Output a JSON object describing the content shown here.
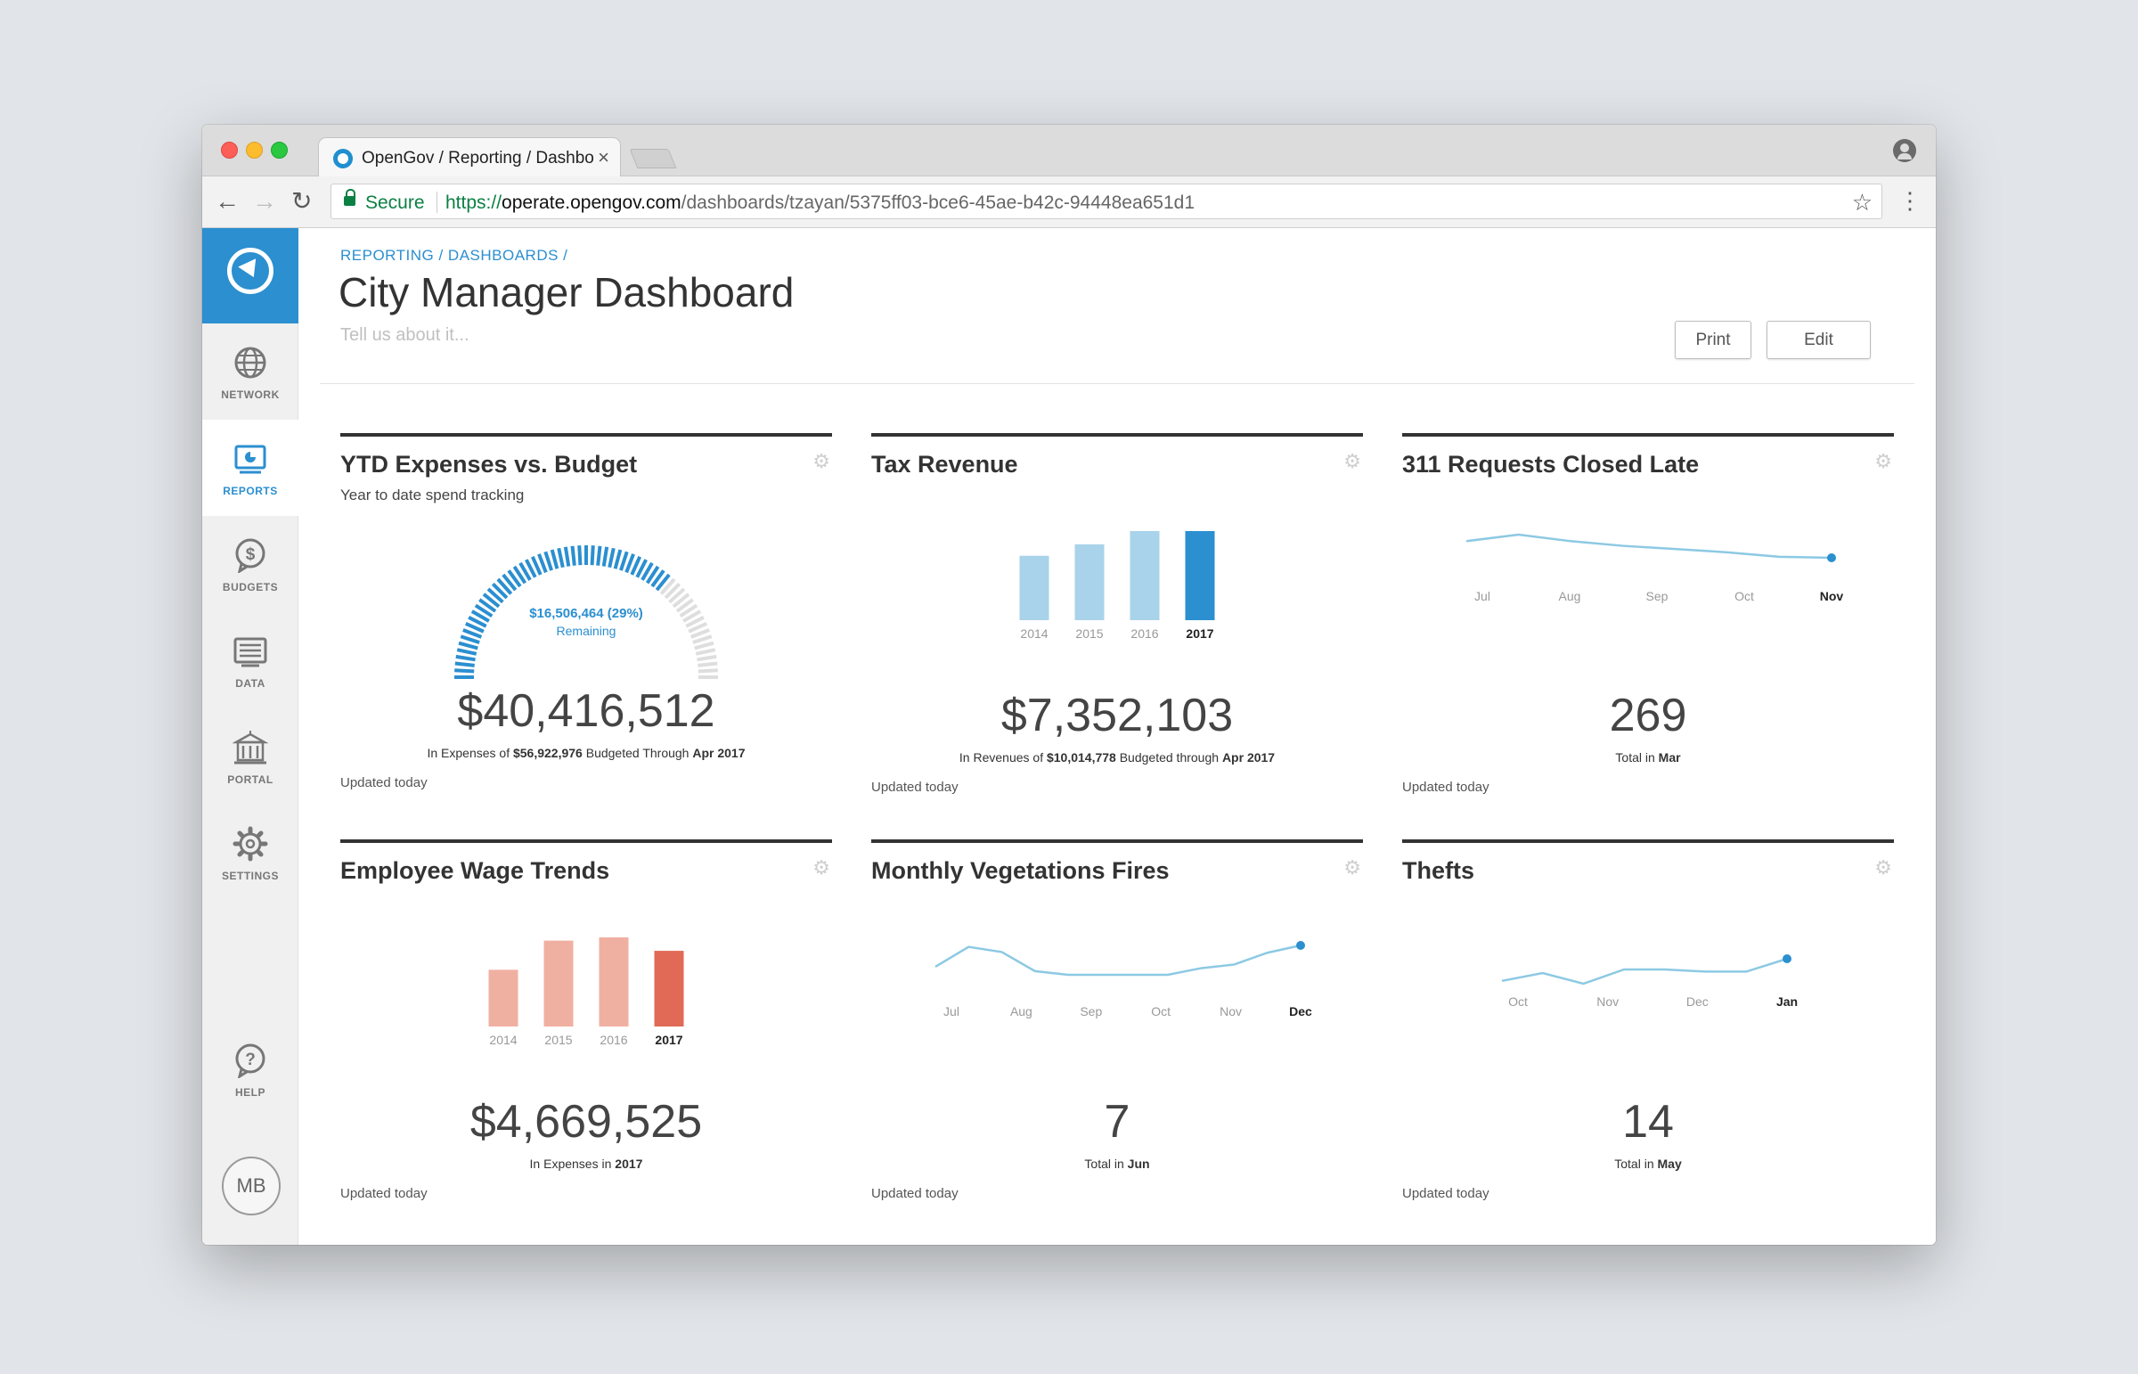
{
  "browser": {
    "tab_title": "OpenGov / Reporting / Dashbo",
    "secure_label": "Secure",
    "url_scheme": "https://",
    "url_host": "operate.opengov.com",
    "url_path": "/dashboards/tzayan/5375ff03-bce6-45ae-b42c-94448ea651d1"
  },
  "sidebar": {
    "items": [
      {
        "label": "NETWORK",
        "icon": "globe-icon"
      },
      {
        "label": "REPORTS",
        "icon": "reports-icon",
        "active": true
      },
      {
        "label": "BUDGETS",
        "icon": "dollar-icon"
      },
      {
        "label": "DATA",
        "icon": "data-icon"
      },
      {
        "label": "PORTAL",
        "icon": "building-icon"
      },
      {
        "label": "SETTINGS",
        "icon": "gear-icon"
      }
    ],
    "help_label": "HELP",
    "avatar_initials": "MB"
  },
  "header": {
    "breadcrumb": "REPORTING / DASHBOARDS /",
    "title": "City Manager Dashboard",
    "description_placeholder": "Tell us about it...",
    "print_label": "Print",
    "edit_label": "Edit"
  },
  "colors": {
    "accent": "#2b8fd0",
    "bar_light_blue": "#a9d3ea",
    "bar_blue": "#2b8fd0",
    "bar_light_red": "#f0b0a1",
    "bar_red": "#e06a55",
    "line_blue": "#8cc9e3"
  },
  "cards": [
    {
      "title": "YTD Expenses vs. Budget",
      "subtitle": "Year to date spend tracking",
      "gauge_label": "$16,506,464 (29%)",
      "gauge_sublabel": "Remaining",
      "value": "$40,416,512",
      "caption_pre": "In Expenses of ",
      "caption_bold": "$56,922,976",
      "caption_mid": " Budgeted Through ",
      "caption_bold2": "Apr 2017",
      "updated": "Updated today"
    },
    {
      "title": "Tax Revenue",
      "value": "$7,352,103",
      "caption_pre": "In Revenues of ",
      "caption_bold": "$10,014,778",
      "caption_mid": " Budgeted through ",
      "caption_bold2": "Apr 2017",
      "updated": "Updated today"
    },
    {
      "title": "311 Requests Closed Late",
      "value": "269",
      "caption_pre": "Total in ",
      "caption_bold": "Mar",
      "updated": "Updated today"
    },
    {
      "title": "Employee Wage Trends",
      "value": "$4,669,525",
      "caption_pre": "In Expenses in ",
      "caption_bold": "2017",
      "updated": "Updated today"
    },
    {
      "title": "Monthly Vegetations Fires",
      "value": "7",
      "caption_pre": "Total in ",
      "caption_bold": "Jun",
      "updated": "Updated today"
    },
    {
      "title": "Thefts",
      "value": "14",
      "caption_pre": "Total in ",
      "caption_bold": "May",
      "updated": "Updated today"
    }
  ],
  "chart_data": [
    {
      "type": "gauge",
      "spent_fraction": 0.71,
      "remaining_fraction": 0.29
    },
    {
      "type": "bar",
      "categories": [
        "2014",
        "2015",
        "2016",
        "2017"
      ],
      "values": [
        7.3,
        8.6,
        10.1,
        10.1
      ],
      "highlight": "2017"
    },
    {
      "type": "line",
      "categories": [
        "Jul",
        "Aug",
        "Sep",
        "Oct",
        "Nov"
      ],
      "points": [
        330,
        355,
        330,
        312,
        300,
        287,
        270,
        266
      ],
      "highlight": "Nov"
    },
    {
      "type": "bar",
      "categories": [
        "2014",
        "2015",
        "2016",
        "2017"
      ],
      "values": [
        3.5,
        5.3,
        5.5,
        4.67
      ],
      "highlight": "2017"
    },
    {
      "type": "line",
      "categories": [
        "Jul",
        "Aug",
        "Sep",
        "Oct",
        "Nov",
        "Dec"
      ],
      "points": [
        6.5,
        9.2,
        8.5,
        5.9,
        5.4,
        5.4,
        5.4,
        5.4,
        6.3,
        6.8,
        8.4,
        9.4
      ],
      "highlight": "Dec"
    },
    {
      "type": "line",
      "categories": [
        "Oct",
        "Nov",
        "Dec",
        "Jan"
      ],
      "points": [
        10.2,
        11.3,
        9.8,
        11.8,
        11.8,
        11.5,
        11.5,
        13.3
      ],
      "highlight": "Jan"
    }
  ]
}
